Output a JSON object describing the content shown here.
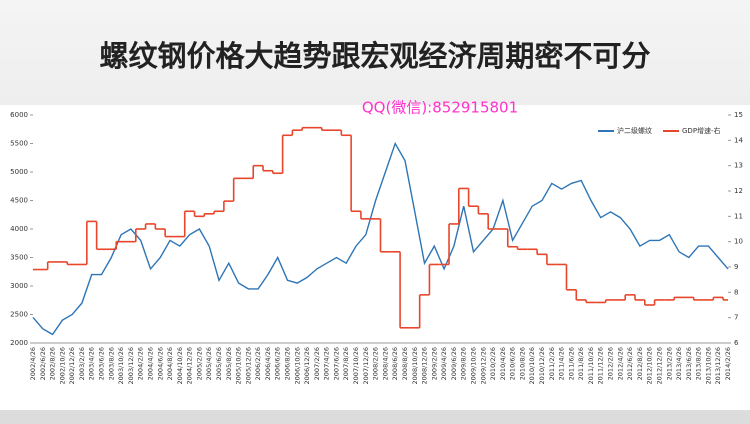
{
  "chart_data": {
    "type": "line",
    "title": "螺纹钢价格大趋势跟宏观经济周期密不可分",
    "annotation": "QQ(微信):852915801",
    "categories": [
      "2002/4/26",
      "2002/6/26",
      "2002/8/26",
      "2002/10/26",
      "2002/12/26",
      "2003/2/26",
      "2003/4/26",
      "2003/6/26",
      "2003/8/26",
      "2003/10/26",
      "2003/12/26",
      "2004/2/26",
      "2004/4/26",
      "2004/6/26",
      "2004/8/26",
      "2004/10/26",
      "2004/12/26",
      "2005/2/26",
      "2005/4/26",
      "2005/6/26",
      "2005/8/26",
      "2005/10/26",
      "2005/12/26",
      "2006/2/26",
      "2006/4/26",
      "2006/6/26",
      "2006/8/26",
      "2006/10/26",
      "2006/12/26",
      "2007/2/26",
      "2007/4/26",
      "2007/6/26",
      "2007/8/26",
      "2007/10/26",
      "2007/12/26",
      "2008/2/26",
      "2008/4/26",
      "2008/6/26",
      "2008/8/26",
      "2008/10/26",
      "2008/12/26",
      "2009/2/26",
      "2009/4/26",
      "2009/6/26",
      "2009/8/26",
      "2009/10/26",
      "2009/12/26",
      "2010/2/26",
      "2010/4/26",
      "2010/6/26",
      "2010/8/26",
      "2010/10/26",
      "2010/12/26",
      "2011/2/26",
      "2011/4/26",
      "2011/6/26",
      "2011/8/26",
      "2011/10/26",
      "2011/12/26",
      "2012/2/26",
      "2012/4/26",
      "2012/6/26",
      "2012/8/26",
      "2012/10/26",
      "2012/12/26",
      "2013/2/26",
      "2013/4/26",
      "2013/6/26",
      "2013/8/26",
      "2013/10/26",
      "2013/12/26",
      "2014/2/26"
    ],
    "series": [
      {
        "name": "沪二级螺纹",
        "color": "#2e75b6",
        "values": [
          2450,
          2250,
          2150,
          2400,
          2500,
          2700,
          3200,
          3200,
          3500,
          3900,
          4000,
          3800,
          3300,
          3500,
          3800,
          3700,
          3900,
          4000,
          3700,
          3100,
          3400,
          3050,
          2950,
          2950,
          3200,
          3500,
          3100,
          3050,
          3150,
          3300,
          3400,
          3500,
          3400,
          3700,
          3900,
          4500,
          5000,
          5500,
          5200,
          4300,
          3400,
          3700,
          3300,
          3700,
          4400,
          3600,
          3800,
          4000,
          4500,
          3800,
          4100,
          4400,
          4500,
          4800,
          4700,
          4800,
          4850,
          4500,
          4200,
          4300,
          4200,
          4000,
          3700,
          3800,
          3800,
          3900,
          3600,
          3500,
          3700,
          3700,
          3500,
          3300
        ]
      },
      {
        "name": "GDP增速-右",
        "color": "#e8462b",
        "axis": "y2",
        "step": true,
        "values": [
          8.9,
          8.9,
          9.2,
          9.2,
          9.1,
          9.1,
          10.8,
          9.7,
          9.7,
          10.0,
          10.0,
          10.5,
          10.7,
          10.5,
          10.2,
          10.2,
          11.2,
          11.0,
          11.1,
          11.2,
          11.6,
          12.5,
          12.5,
          13.0,
          12.8,
          12.7,
          14.2,
          14.4,
          14.5,
          14.5,
          14.4,
          14.4,
          14.2,
          11.2,
          10.9,
          10.9,
          9.6,
          9.6,
          6.6,
          6.6,
          7.9,
          9.1,
          9.1,
          10.7,
          12.1,
          11.4,
          11.1,
          10.5,
          10.5,
          9.8,
          9.7,
          9.7,
          9.5,
          9.1,
          9.1,
          8.1,
          7.7,
          7.6,
          7.6,
          7.7,
          7.7,
          7.9,
          7.7,
          7.5,
          7.7,
          7.7,
          7.8,
          7.8,
          7.7,
          7.7,
          7.8,
          7.7
        ]
      }
    ],
    "ylim": [
      2000,
      6000
    ],
    "yticks": [
      2000,
      2500,
      3000,
      3500,
      4000,
      4500,
      5000,
      5500,
      6000
    ],
    "y2lim": [
      6,
      15
    ],
    "y2ticks": [
      6,
      7,
      8,
      9,
      10,
      11,
      12,
      13,
      14,
      15
    ],
    "legend": "top-right"
  }
}
